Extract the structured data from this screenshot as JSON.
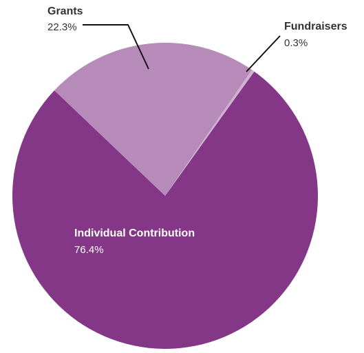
{
  "chart_data": {
    "type": "pie",
    "slices": [
      {
        "label": "Individual Contribution",
        "value": 76.4,
        "display": "76.4%",
        "color": "#843786"
      },
      {
        "label": "Grants",
        "value": 22.3,
        "display": "22.3%",
        "color": "#b68bb9"
      },
      {
        "label": "Fundraisers",
        "value": 0.3,
        "display": "0.3%",
        "color": "#ceb1cf"
      }
    ],
    "label_color_dark": "#333333",
    "label_color_light": "#ffffff"
  }
}
